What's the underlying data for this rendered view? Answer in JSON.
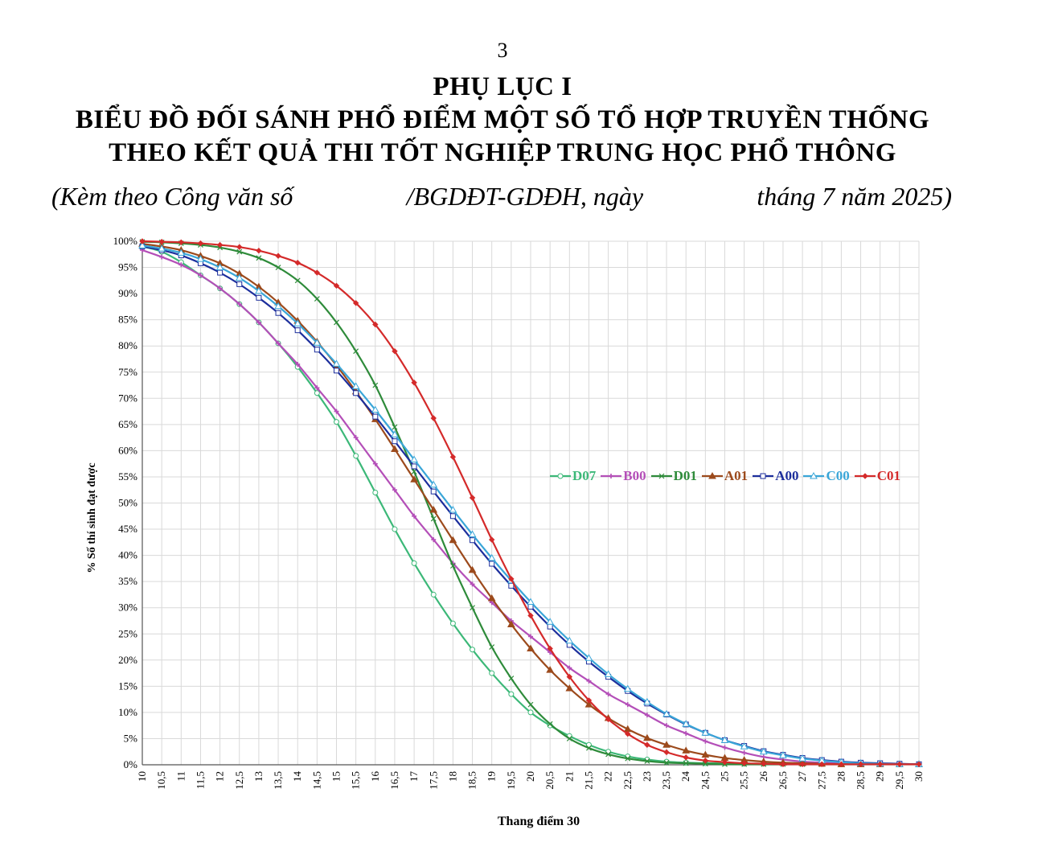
{
  "page_number": "3",
  "heading_line1": "PHỤ LỤC I",
  "heading_line2": "BIỂU ĐỒ ĐỐI SÁNH PHỔ ĐIỂM MỘT SỐ TỔ HỢP TRUYỀN THỐNG",
  "heading_line3": "THEO KẾT QUẢ THI TỐT NGHIỆP TRUNG HỌC PHỔ THÔNG",
  "subtitle": {
    "part1": "(Kèm theo Công văn số",
    "part2": "/BGDĐT-GDĐH, ngày",
    "part3": "tháng 7 năm 2025)"
  },
  "chart_data": {
    "type": "line",
    "xlabel": "Thang điểm 30",
    "ylabel": "% Số thí sinh đạt được",
    "xlim": [
      10,
      30
    ],
    "ylim": [
      0,
      100
    ],
    "grid": true,
    "legend_position": "center-right",
    "x": [
      10,
      10.5,
      11,
      11.5,
      12,
      12.5,
      13,
      13.5,
      14,
      14.5,
      15,
      15.5,
      16,
      16.5,
      17,
      17.5,
      18,
      18.5,
      19,
      19.5,
      20,
      20.5,
      21,
      21.5,
      22,
      22.5,
      23,
      23.5,
      24,
      24.5,
      25,
      25.5,
      26,
      26.5,
      27,
      27.5,
      28,
      28.5,
      29,
      29.5,
      30
    ],
    "x_tick_labels": [
      "10",
      "10,5",
      "11",
      "11,5",
      "12",
      "12,5",
      "13",
      "13,5",
      "14",
      "14,5",
      "15",
      "15,5",
      "16",
      "16,5",
      "17",
      "17,5",
      "18",
      "18,5",
      "19",
      "19,5",
      "20",
      "20,5",
      "21",
      "21,5",
      "22",
      "22,5",
      "23",
      "23,5",
      "24",
      "24,5",
      "25",
      "25,5",
      "26",
      "26,5",
      "27",
      "27,5",
      "28",
      "28,5",
      "29",
      "29,5",
      "30"
    ],
    "y_tick_labels": [
      "0%",
      "5%",
      "10%",
      "15%",
      "20%",
      "25%",
      "30%",
      "35%",
      "40%",
      "45%",
      "50%",
      "55%",
      "60%",
      "65%",
      "70%",
      "75%",
      "80%",
      "85%",
      "90%",
      "95%",
      "100%"
    ],
    "series": [
      {
        "name": "D07",
        "color": "#3cb878",
        "marker": "circle",
        "values": [
          99,
          98,
          96,
          93.5,
          91,
          88,
          84.5,
          80.5,
          76,
          71,
          65.5,
          59,
          52,
          45,
          38.5,
          32.5,
          27,
          22,
          17.5,
          13.5,
          10,
          7.5,
          5.5,
          3.8,
          2.5,
          1.6,
          1.0,
          0.6,
          0.4,
          0.3,
          0.3,
          0.2,
          0.2,
          0.2,
          0.2,
          0.2,
          0.1,
          0.1,
          0.1,
          0.1,
          0.1
        ]
      },
      {
        "name": "B00",
        "color": "#b44fb8",
        "marker": "plus",
        "values": [
          98.3,
          97,
          95.5,
          93.5,
          91,
          88,
          84.5,
          80.5,
          76.5,
          72,
          67.5,
          62.5,
          57.5,
          52.5,
          47.5,
          43,
          38.5,
          34.5,
          31,
          27.5,
          24.5,
          21.5,
          18.5,
          16,
          13.5,
          11.5,
          9.5,
          7.5,
          6,
          4.5,
          3.3,
          2.3,
          1.5,
          1.0,
          0.6,
          0.4,
          0.3,
          0.2,
          0.2,
          0.1,
          0.1
        ]
      },
      {
        "name": "D01",
        "color": "#2e8b3a",
        "marker": "x",
        "values": [
          99.9,
          99.8,
          99.6,
          99.3,
          98.8,
          98,
          96.8,
          95,
          92.5,
          89,
          84.5,
          79,
          72.5,
          64.5,
          56,
          47,
          38,
          30,
          22.5,
          16.5,
          11.5,
          7.8,
          5.0,
          3.2,
          2.0,
          1.2,
          0.7,
          0.4,
          0.3,
          0.2,
          0.1,
          0.1,
          0.1,
          0.1,
          0.1,
          0.1,
          0.1,
          0.1,
          0.1,
          0.1,
          0.1
        ]
      },
      {
        "name": "A01",
        "color": "#9c4a1c",
        "marker": "triangle",
        "values": [
          99.5,
          99,
          98.3,
          97.2,
          95.8,
          93.8,
          91.3,
          88.3,
          84.8,
          80.8,
          76.3,
          71.3,
          66,
          60.3,
          54.5,
          48.7,
          42.9,
          37.2,
          31.8,
          26.8,
          22.2,
          18.1,
          14.6,
          11.5,
          8.9,
          6.8,
          5.1,
          3.8,
          2.7,
          1.9,
          1.3,
          0.9,
          0.6,
          0.4,
          0.3,
          0.2,
          0.1,
          0.1,
          0.1,
          0.1,
          0.1
        ]
      },
      {
        "name": "A00",
        "color": "#1c2e9c",
        "marker": "square",
        "values": [
          99,
          98.3,
          97.3,
          95.8,
          94,
          91.8,
          89.2,
          86.3,
          83,
          79.3,
          75.3,
          71,
          66.5,
          61.8,
          57,
          52.2,
          47.5,
          42.9,
          38.4,
          34.2,
          30.2,
          26.4,
          22.9,
          19.7,
          16.8,
          14.1,
          11.7,
          9.6,
          7.7,
          6.1,
          4.7,
          3.6,
          2.6,
          1.9,
          1.3,
          0.9,
          0.6,
          0.4,
          0.3,
          0.2,
          0.1
        ]
      },
      {
        "name": "C00",
        "color": "#3aa6d8",
        "marker": "triangle-open",
        "values": [
          99.2,
          98.6,
          97.8,
          96.6,
          95,
          93,
          90.5,
          87.6,
          84.3,
          80.6,
          76.6,
          72.3,
          67.8,
          63.1,
          58.3,
          53.5,
          48.7,
          44,
          39.5,
          35.2,
          31.1,
          27.3,
          23.7,
          20.4,
          17.3,
          14.5,
          12,
          9.7,
          7.8,
          6.1,
          4.7,
          3.5,
          2.5,
          1.8,
          1.2,
          0.8,
          0.5,
          0.3,
          0.2,
          0.1,
          0.1
        ]
      },
      {
        "name": "C01",
        "color": "#d42a2a",
        "marker": "diamond",
        "values": [
          100,
          99.9,
          99.8,
          99.6,
          99.3,
          98.9,
          98.2,
          97.2,
          95.9,
          94,
          91.5,
          88.2,
          84.1,
          79,
          73,
          66.2,
          58.8,
          51,
          43,
          35.5,
          28.5,
          22.2,
          16.8,
          12.3,
          8.7,
          5.9,
          3.8,
          2.4,
          1.4,
          0.8,
          0.5,
          0.3,
          0.2,
          0.1,
          0.1,
          0.1,
          0.1,
          0.1,
          0.1,
          0.1,
          0.1
        ]
      }
    ]
  }
}
